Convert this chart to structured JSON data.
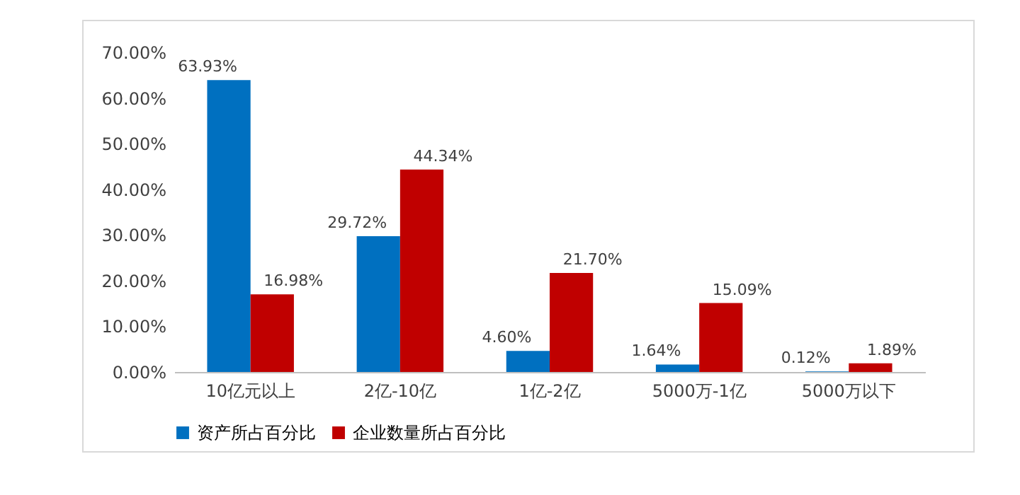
{
  "chart_data": {
    "type": "bar",
    "categories": [
      "10亿元以上",
      "2亿-10亿",
      "1亿-2亿",
      "5000万-1亿",
      "5000万以下"
    ],
    "series": [
      {
        "name": "资产所占百分比",
        "color": "#0070c0",
        "values": [
          63.93,
          29.72,
          4.6,
          1.64,
          0.12
        ],
        "value_labels": [
          "63.93%",
          "29.72%",
          "4.60%",
          "1.64%",
          "0.12%"
        ]
      },
      {
        "name": "企业数量所占百分比",
        "color": "#c00000",
        "values": [
          16.98,
          44.34,
          21.7,
          15.09,
          1.89
        ],
        "value_labels": [
          "16.98%",
          "44.34%",
          "21.70%",
          "15.09%",
          "1.89%"
        ]
      }
    ],
    "ylim": [
      0,
      70
    ],
    "yticks": [
      {
        "value": 0,
        "label": "0.00%"
      },
      {
        "value": 10,
        "label": "10.00%"
      },
      {
        "value": 20,
        "label": "20.00%"
      },
      {
        "value": 30,
        "label": "30.00%"
      },
      {
        "value": 40,
        "label": "40.00%"
      },
      {
        "value": 50,
        "label": "50.00%"
      },
      {
        "value": 60,
        "label": "60.00%"
      },
      {
        "value": 70,
        "label": "70.00%"
      }
    ],
    "legend": "bottom"
  }
}
